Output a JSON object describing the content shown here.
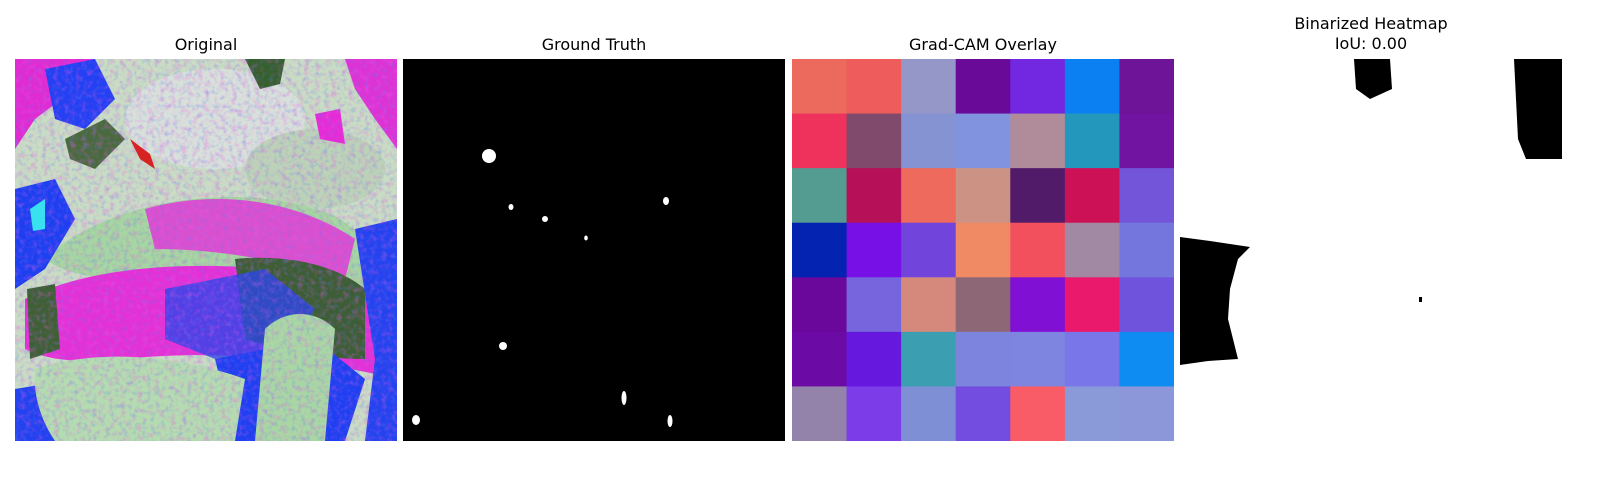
{
  "panels": [
    {
      "title": "Original"
    },
    {
      "title": "Ground Truth"
    },
    {
      "title": "Grad-CAM Overlay"
    },
    {
      "title": "Binarized Heatmap",
      "subtitle": "IoU: 0.00"
    }
  ],
  "gradcam": {
    "rows": 7,
    "cols": 7,
    "cells": [
      [
        "#ec6a5d",
        "#ee5d5c",
        "#9597c8",
        "#6a0a98",
        "#7128e0",
        "#0b80f3",
        "#6e1499"
      ],
      [
        "#ee325c",
        "#7f4a6c",
        "#8593d2",
        "#8192de",
        "#b08c9b",
        "#2497bd",
        "#7014a1"
      ],
      [
        "#549c92",
        "#b51058",
        "#ee6a5c",
        "#cc9384",
        "#511b6a",
        "#cd1157",
        "#7255d9"
      ],
      [
        "#0423b0",
        "#7610e6",
        "#7144db",
        "#ef8a65",
        "#f3505e",
        "#a189a3",
        "#7476dd"
      ],
      [
        "#6a089c",
        "#7665dc",
        "#d5897d",
        "#8e6777",
        "#8010d4",
        "#eb196c",
        "#7053dc"
      ],
      [
        "#6c0aa5",
        "#6718df",
        "#3b9eb1",
        "#7c84de",
        "#7d85e0",
        "#7976e9",
        "#0f8cf2"
      ],
      [
        "#9383ab",
        "#7c3de9",
        "#7e8fd6",
        "#734ddf",
        "#f95c67",
        "#8a9ad8",
        "#8b97d8"
      ]
    ]
  },
  "colors": {
    "ground_truth_bg": "#000000",
    "ground_truth_fg": "#ffffff",
    "heatmap_bg": "#ffffff",
    "heatmap_fg": "#000000"
  }
}
